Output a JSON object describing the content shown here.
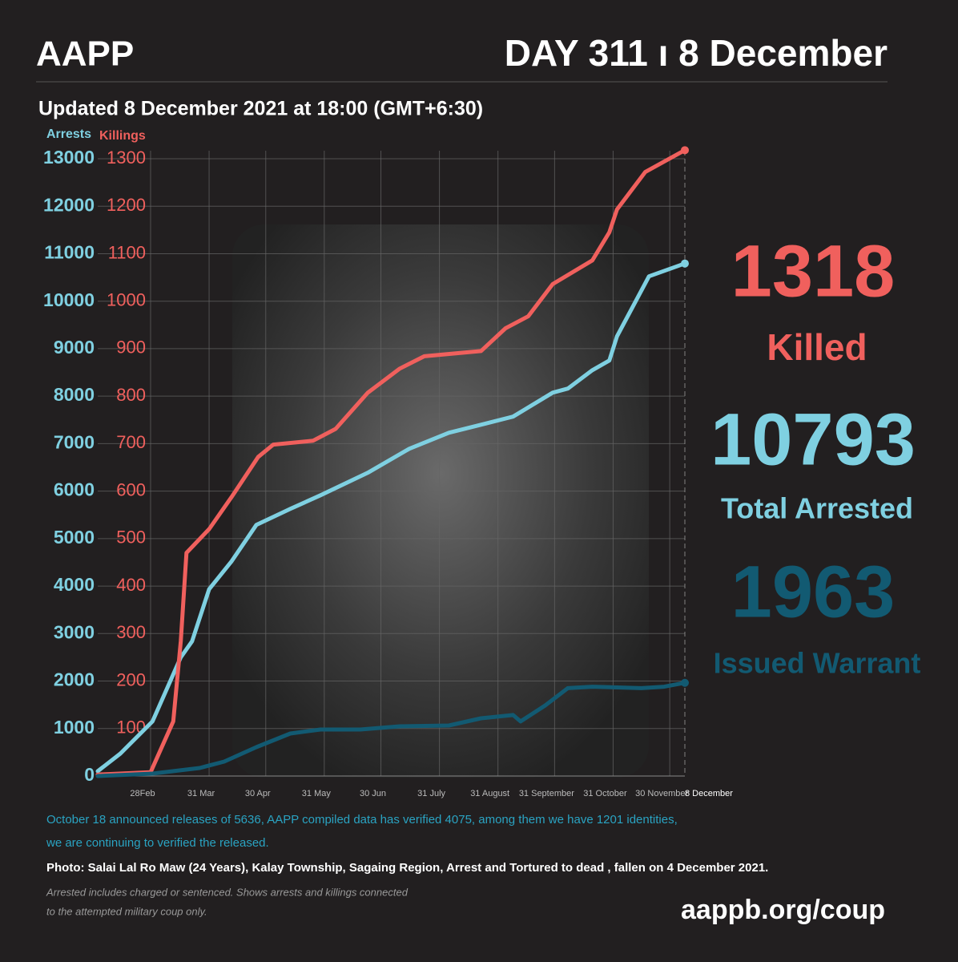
{
  "header": {
    "logo": "AAPP",
    "day": "DAY 311 ı 8 December",
    "updated": "Updated 8 December 2021 at 18:00 (GMT+6:30)"
  },
  "chart_data": {
    "type": "line",
    "xlim": [
      0,
      311
    ],
    "xticks": [
      {
        "value": 28,
        "label": "28Feb"
      },
      {
        "value": 59,
        "label": "31 Mar"
      },
      {
        "value": 89,
        "label": "30 Apr"
      },
      {
        "value": 120,
        "label": "31 May"
      },
      {
        "value": 150,
        "label": "30 Jun"
      },
      {
        "value": 181,
        "label": "31 July"
      },
      {
        "value": 212,
        "label": "31 August"
      },
      {
        "value": 242,
        "label": "31 September"
      },
      {
        "value": 273,
        "label": "31 October"
      },
      {
        "value": 303,
        "label": "30 November"
      },
      {
        "value": 311,
        "label": "8 December"
      }
    ],
    "ylim": [
      0,
      13000
    ],
    "yticks": [
      0,
      1000,
      2000,
      3000,
      4000,
      5000,
      6000,
      7000,
      8000,
      9000,
      10000,
      11000,
      12000,
      13000
    ],
    "y2lim": [
      0,
      1300
    ],
    "y2ticks": [
      100,
      200,
      300,
      400,
      500,
      600,
      700,
      800,
      900,
      1000,
      1100,
      1200,
      1300
    ],
    "grid": true,
    "series": [
      {
        "name": "Arrests",
        "color": "#7fd0e1",
        "x": [
          0,
          12,
          29,
          44,
          50,
          59,
          71,
          84,
          102,
          118,
          143,
          165,
          186,
          203,
          220,
          241,
          249,
          262,
          271,
          275,
          292,
          311
        ],
        "values": [
          101,
          473,
          1149,
          2500,
          2838,
          3936,
          4527,
          5287,
          5625,
          5912,
          6385,
          6892,
          7230,
          7399,
          7568,
          8074,
          8159,
          8547,
          8750,
          9257,
          10523,
          10793
        ]
      },
      {
        "name": "Killings",
        "color": "#f0605d",
        "axis": "y2",
        "x": [
          0,
          28,
          40,
          44,
          47,
          59,
          71,
          85,
          93,
          114,
          126,
          143,
          160,
          173,
          203,
          216,
          228,
          241,
          262,
          271,
          275,
          290,
          311
        ],
        "values": [
          3,
          8,
          115,
          284,
          470,
          520,
          588,
          672,
          698,
          706,
          731,
          807,
          858,
          884,
          895,
          943,
          968,
          1036,
          1086,
          1145,
          1193,
          1272,
          1318
        ]
      },
      {
        "name": "Issued Warrant",
        "color": "#125a72",
        "x": [
          0,
          29,
          54,
          67,
          84,
          102,
          118,
          139,
          160,
          186,
          203,
          220,
          224,
          237,
          249,
          262,
          288,
          300,
          311
        ],
        "values": [
          0,
          50,
          169,
          304,
          608,
          895,
          980,
          980,
          1047,
          1064,
          1216,
          1284,
          1149,
          1486,
          1850,
          1880,
          1850,
          1880,
          1963
        ]
      }
    ]
  },
  "stats": [
    {
      "value": 1318,
      "label": "Killed"
    },
    {
      "value": 10793,
      "label": "Total Arrested"
    },
    {
      "value": 1963
    }
  ],
  "notes": {
    "releases": [
      "October 18 announced releases of 5636, AAPP compiled data has verified 4075, among them we have 1201 identities,",
      "we are continuing to verified the released."
    ],
    "photo": "Photo:  Salai Lal Ro Maw (24 Years), Kalay Township, Sagaing Region, Arrest and Tortured to dead , fallen on 4 December 2021.",
    "footnote": [
      "Arrested includes charged or sentenced. Shows arrests and killings connected",
      "to the attempted military coup only."
    ],
    "url": "aappb.org/coup"
  }
}
